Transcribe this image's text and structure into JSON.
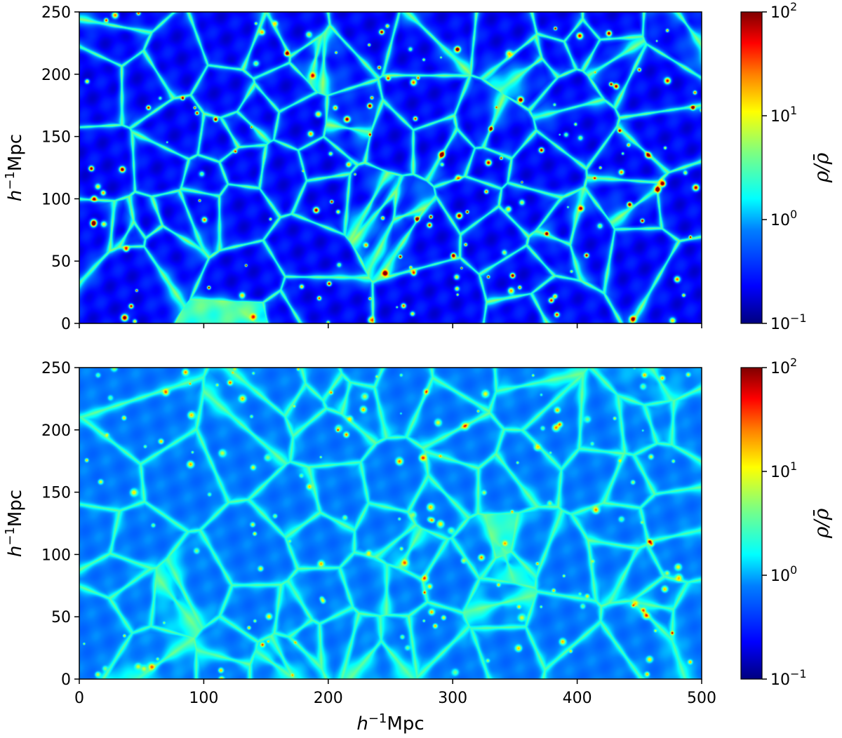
{
  "chart_data": [
    {
      "type": "heatmap",
      "panel": "top",
      "xlim": [
        0,
        500
      ],
      "ylim": [
        0,
        250
      ],
      "x_ticks": [
        0,
        100,
        200,
        300,
        400,
        500
      ],
      "y_ticks": [
        0,
        50,
        100,
        150,
        200,
        250
      ],
      "x_tick_labels": [
        "",
        "",
        "",
        "",
        "",
        ""
      ],
      "y_tick_labels": [
        "0",
        "50",
        "100",
        "150",
        "200",
        "250"
      ],
      "xlabel": "",
      "ylabel": {
        "var": "h",
        "exp": "−1",
        "unit": "Mpc"
      },
      "colorbar": {
        "label": "ρ/ρ̄",
        "scale": "log",
        "colormap": "jet",
        "range": [
          0.1,
          100
        ],
        "ticks": [
          0.1,
          1,
          10,
          100
        ],
        "tick_labels": [
          {
            "base": "10",
            "exp": "−1"
          },
          {
            "base": "10",
            "exp": "0"
          },
          {
            "base": "10",
            "exp": "1"
          },
          {
            "base": "10",
            "exp": "2"
          }
        ]
      },
      "colors": {
        "colormap": [
          "#00007f",
          "#0000ff",
          "#007fff",
          "#00ffff",
          "#7fff7f",
          "#ffff00",
          "#ff7f00",
          "#ff0000",
          "#7f0000"
        ]
      },
      "description_style": "cosmic web density slice, high contrast filaments and halos"
    },
    {
      "type": "heatmap",
      "panel": "bottom",
      "xlim": [
        0,
        500
      ],
      "ylim": [
        0,
        250
      ],
      "x_ticks": [
        0,
        100,
        200,
        300,
        400,
        500
      ],
      "y_ticks": [
        0,
        50,
        100,
        150,
        200,
        250
      ],
      "x_tick_labels": [
        "0",
        "100",
        "200",
        "300",
        "400",
        "500"
      ],
      "y_tick_labels": [
        "0",
        "50",
        "100",
        "150",
        "200",
        "250"
      ],
      "xlabel": {
        "var": "h",
        "exp": "−1",
        "unit": "Mpc"
      },
      "ylabel": {
        "var": "h",
        "exp": "−1",
        "unit": "Mpc"
      },
      "colorbar": {
        "label": "ρ/ρ̄",
        "scale": "log",
        "colormap": "jet",
        "range": [
          0.1,
          100
        ],
        "ticks": [
          0.1,
          1,
          10,
          100
        ],
        "tick_labels": [
          {
            "base": "10",
            "exp": "−1"
          },
          {
            "base": "10",
            "exp": "0"
          },
          {
            "base": "10",
            "exp": "1"
          },
          {
            "base": "10",
            "exp": "2"
          }
        ]
      },
      "colors": {
        "colormap": [
          "#00007f",
          "#0000ff",
          "#007fff",
          "#00ffff",
          "#7fff7f",
          "#ffff00",
          "#ff7f00",
          "#ff0000",
          "#7f0000"
        ]
      },
      "description_style": "cosmic web density slice, lower contrast, smoother field"
    }
  ]
}
